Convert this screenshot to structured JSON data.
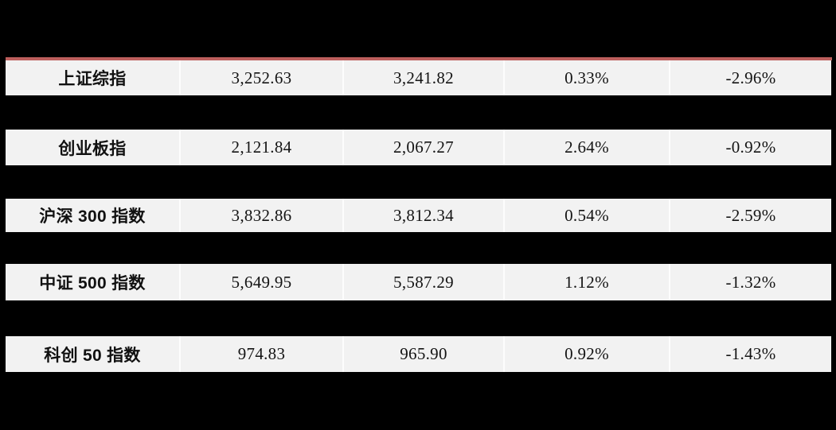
{
  "colors": {
    "page_background": "#000000",
    "row_background": "#f2f2f2",
    "divider_red": "#bd5f5d",
    "text": "#141414"
  },
  "table": {
    "rows": [
      {
        "name": "上证综指",
        "values": [
          "3,252.63",
          "3,241.82",
          "0.33%",
          "-2.96%"
        ]
      },
      {
        "name": "创业板指",
        "values": [
          "2,121.84",
          "2,067.27",
          "2.64%",
          "-0.92%"
        ]
      },
      {
        "name": "沪深 300 指数",
        "values": [
          "3,832.86",
          "3,812.34",
          "0.54%",
          "-2.59%"
        ]
      },
      {
        "name": "中证 500 指数",
        "values": [
          "5,649.95",
          "5,587.29",
          "1.12%",
          "-1.32%"
        ]
      },
      {
        "name": "科创 50 指数",
        "values": [
          "974.83",
          "965.90",
          "0.92%",
          "-1.43%"
        ]
      }
    ]
  },
  "chart_data": {
    "type": "table",
    "title": "",
    "rows": [
      [
        "上证综指",
        3252.63,
        3241.82,
        "0.33%",
        "-2.96%"
      ],
      [
        "创业板指",
        2121.84,
        2067.27,
        "2.64%",
        "-0.92%"
      ],
      [
        "沪深 300 指数",
        3832.86,
        3812.34,
        "0.54%",
        "-2.59%"
      ],
      [
        "中证 500 指数",
        5649.95,
        5587.29,
        "1.12%",
        "-1.32%"
      ],
      [
        "科创 50 指数",
        974.83,
        965.9,
        "0.92%",
        "-1.43%"
      ]
    ]
  }
}
